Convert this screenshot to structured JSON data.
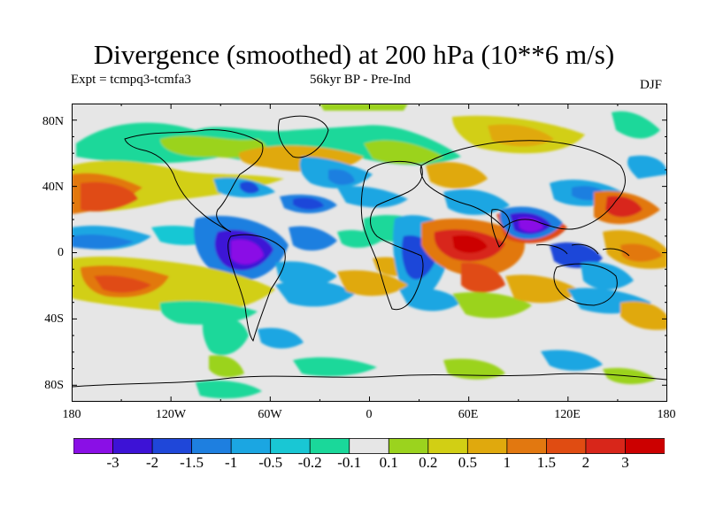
{
  "title": "Divergence (smoothed) at 200 hPa (10**6 m/s)",
  "subtitle_left": "Expt = tcmpq3-tcmfa3",
  "subtitle_center": "56kyr BP - Pre-Ind",
  "subtitle_right": "DJF",
  "lat_labels": [
    "80N",
    "40N",
    "0",
    "40S",
    "80S"
  ],
  "lon_labels": [
    "180",
    "120W",
    "60W",
    "0",
    "60E",
    "120E",
    "180"
  ],
  "colorbar": {
    "labels": [
      "-3",
      "-2",
      "-1.5",
      "-1",
      "-0.5",
      "-0.2",
      "-0.1",
      "0.1",
      "0.2",
      "0.5",
      "1",
      "1.5",
      "2",
      "3"
    ],
    "colors": [
      "#8a0fe6",
      "#3d12d6",
      "#1f47d9",
      "#1e7fe0",
      "#1ba6e2",
      "#19c7d4",
      "#1ad89a",
      "#e6e6e6",
      "#9bd31e",
      "#d2cf14",
      "#e0a90d",
      "#e27810",
      "#e04c12",
      "#d8261a",
      "#cc0000"
    ]
  }
}
